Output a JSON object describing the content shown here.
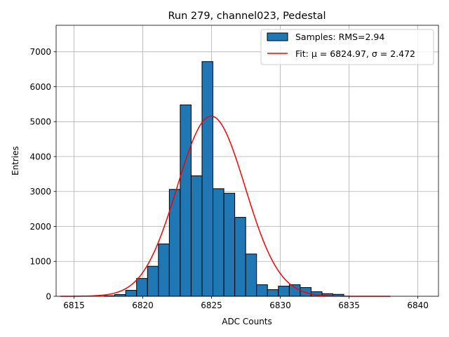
{
  "chart_data": {
    "type": "bar",
    "title": "Run 279, channel023, Pedestal",
    "xlabel": "ADC Counts",
    "ylabel": "Entries",
    "xlim": [
      6813.7,
      6841.5
    ],
    "ylim": [
      0,
      7760
    ],
    "xticks": [
      6815,
      6820,
      6825,
      6830,
      6835,
      6840
    ],
    "yticks": [
      0,
      1000,
      2000,
      3000,
      4000,
      5000,
      6000,
      7000
    ],
    "grid": true,
    "legend_position": "top-right",
    "bin_width": 0.793,
    "histogram": {
      "name": "Samples: RMS=2.94",
      "color": "#1f77b4",
      "edgecolor": "#000000",
      "bin_starts": [
        6814.0,
        6814.793,
        6815.586,
        6816.379,
        6817.172,
        6817.965,
        6818.758,
        6819.551,
        6820.344,
        6821.137,
        6821.93,
        6822.723,
        6823.516,
        6824.309,
        6825.102,
        6825.895,
        6826.688,
        6827.481,
        6828.274,
        6829.067,
        6829.86,
        6830.653,
        6831.446,
        6832.239,
        6833.032,
        6833.825,
        6834.618,
        6835.411,
        6836.204,
        6836.997
      ],
      "counts": [
        0,
        0,
        0,
        0,
        15,
        50,
        170,
        510,
        860,
        1500,
        3060,
        5480,
        3450,
        6720,
        3080,
        2950,
        2260,
        1210,
        330,
        190,
        290,
        330,
        250,
        130,
        75,
        55,
        0,
        0,
        0,
        0
      ]
    },
    "fit": {
      "name": "Fit: μ = 6824.97, σ = 2.472",
      "color": "#ff0000",
      "mu": 6824.97,
      "sigma": 2.472,
      "amplitude": 5160,
      "x_range": [
        6814.0,
        6838.0
      ]
    }
  }
}
